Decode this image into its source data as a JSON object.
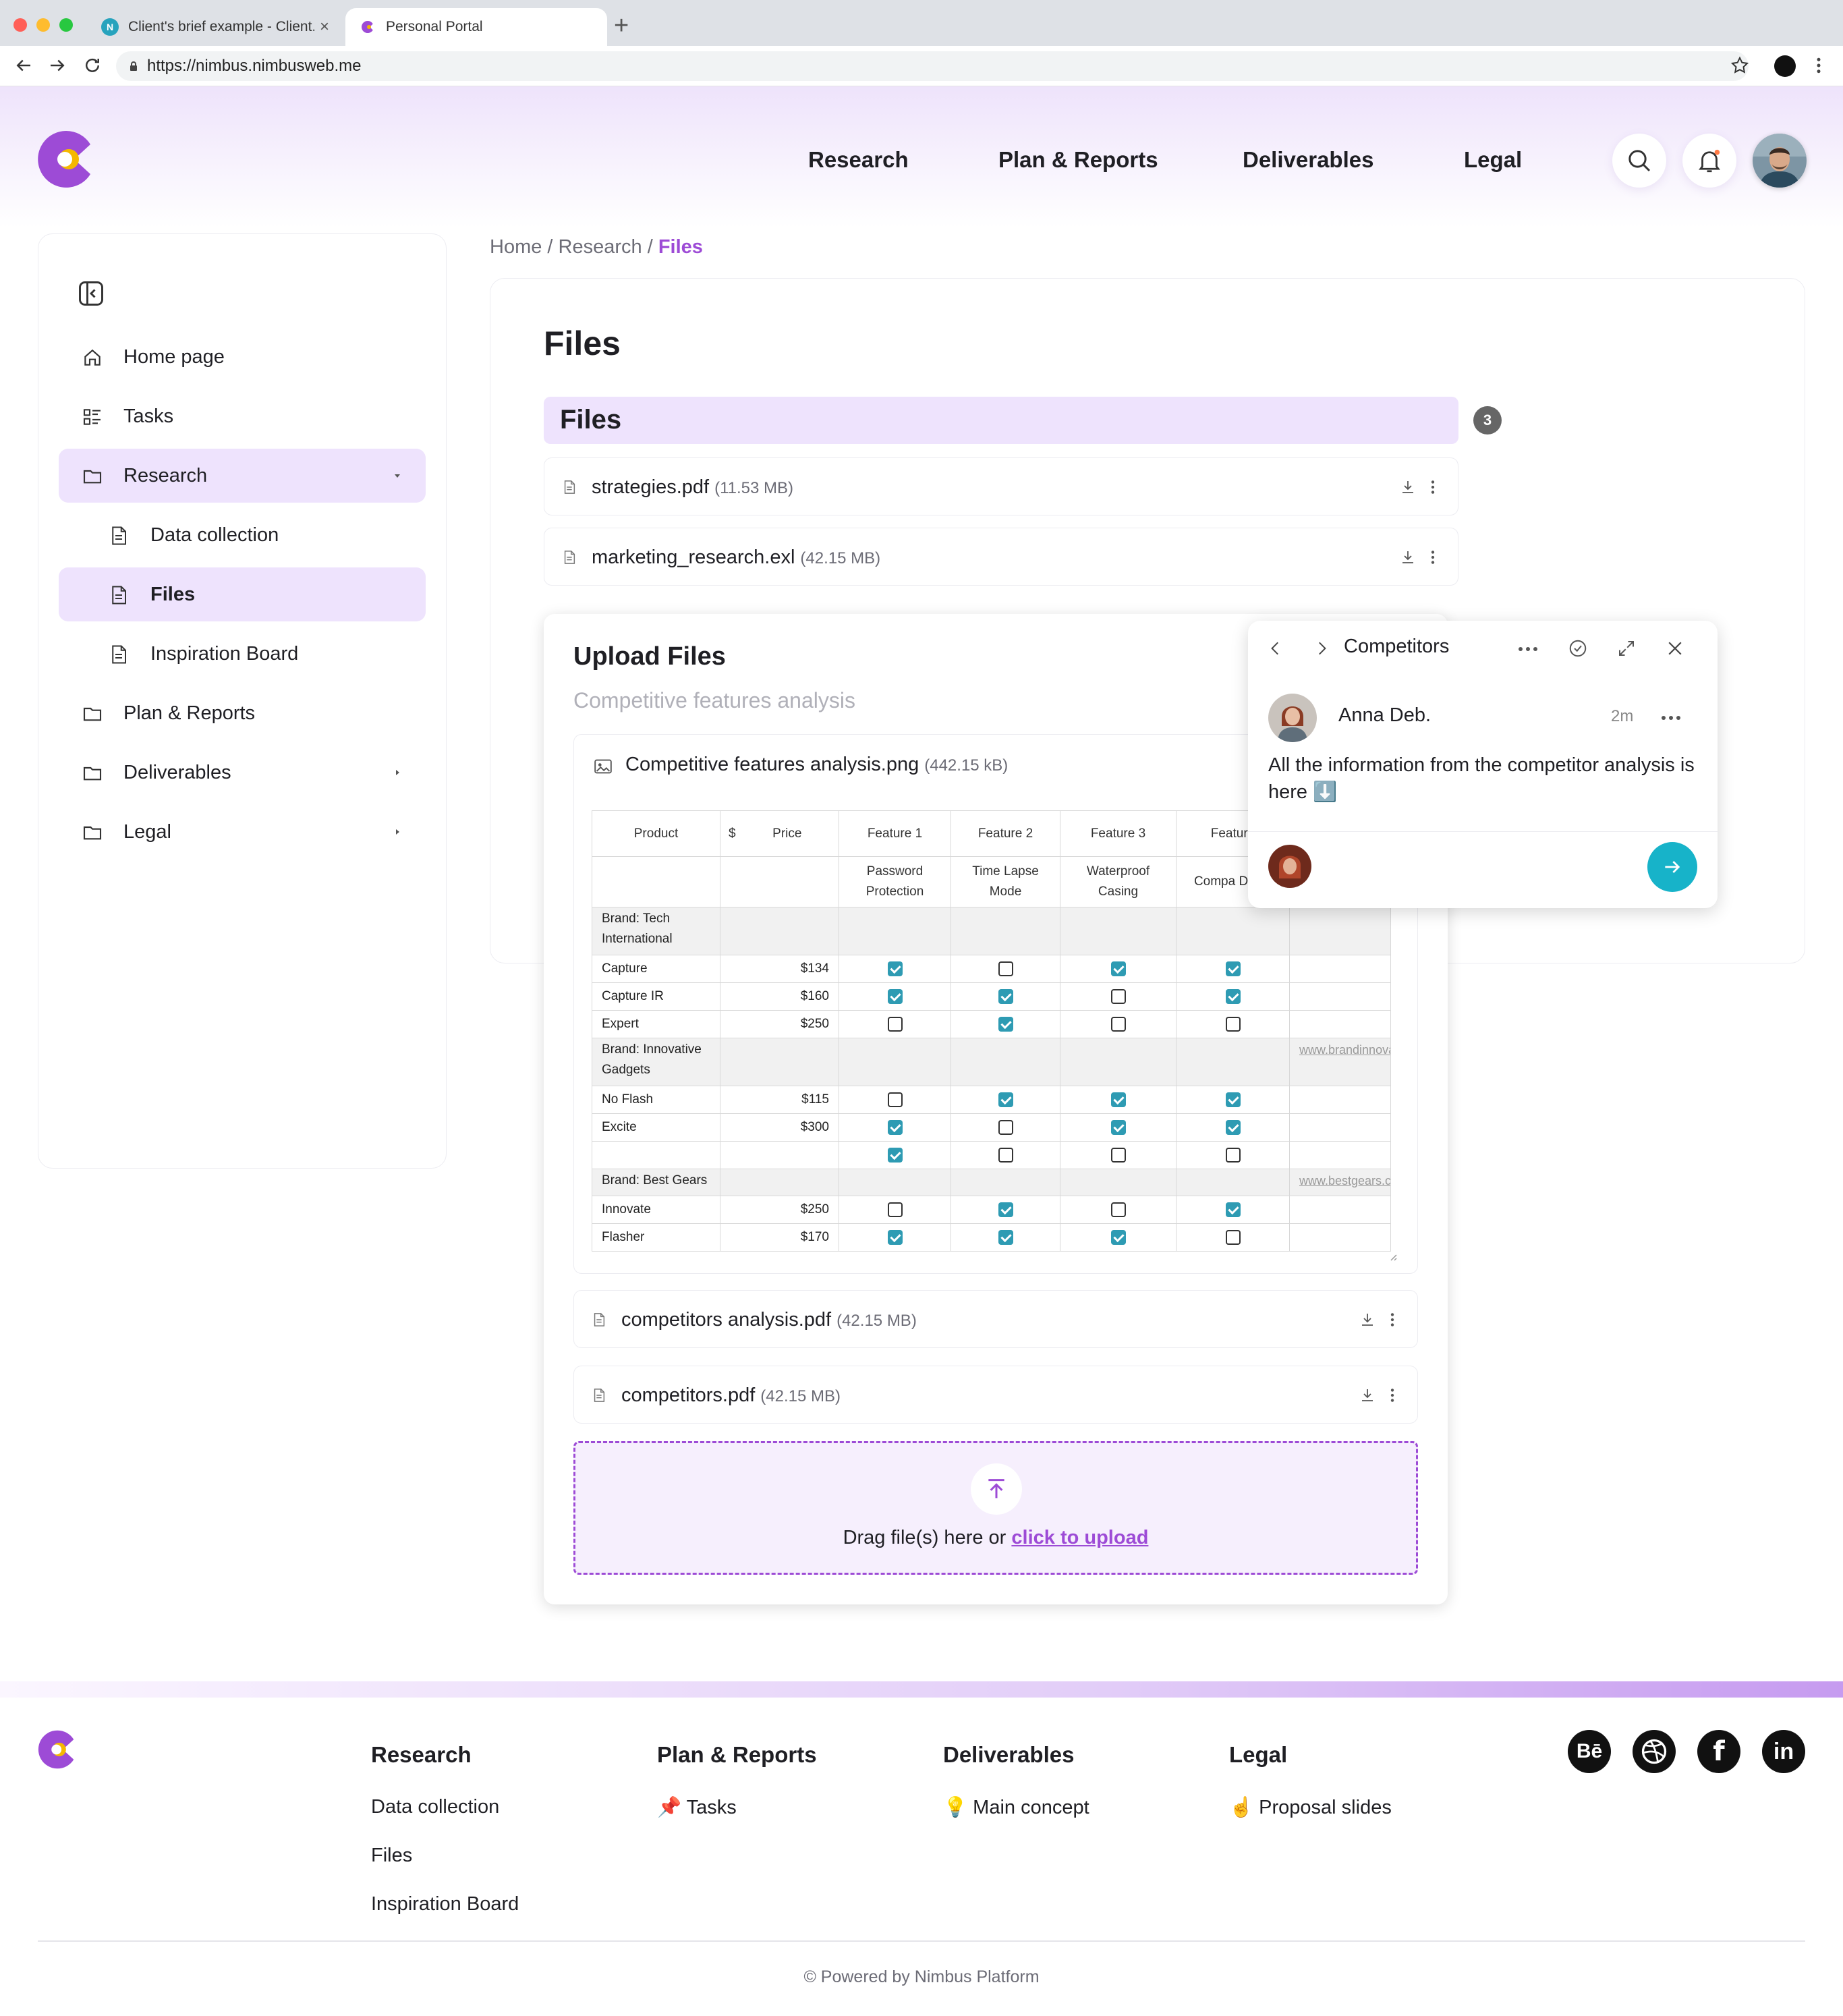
{
  "browser": {
    "tabs": [
      {
        "title": "Client's brief example - Client...",
        "close": "×"
      },
      {
        "title": "Personal Portal"
      }
    ],
    "new_tab": "+",
    "url": "https://nimbus.nimbusweb.me"
  },
  "header": {
    "nav": [
      "Research",
      "Plan & Reports",
      "Deliverables",
      "Legal"
    ],
    "brand_color": "#9d4bd6",
    "accent_color": "#f5b800"
  },
  "sidebar": {
    "items": [
      {
        "label": "Home page",
        "icon": "home-icon"
      },
      {
        "label": "Tasks",
        "icon": "tasks-icon"
      },
      {
        "label": "Research",
        "icon": "folder-icon",
        "expanded": true
      },
      {
        "label": "Data collection",
        "icon": "document-icon"
      },
      {
        "label": "Files",
        "icon": "document-icon",
        "selected": true
      },
      {
        "label": "Inspiration Board",
        "icon": "document-icon"
      },
      {
        "label": "Plan & Reports",
        "icon": "folder-icon"
      },
      {
        "label": "Deliverables",
        "icon": "folder-icon"
      },
      {
        "label": "Legal",
        "icon": "folder-icon"
      }
    ]
  },
  "breadcrumb": {
    "home": "Home",
    "sep": " / ",
    "parent": "Research",
    "current": "Files"
  },
  "main": {
    "title": "Files",
    "section_label": "Files",
    "count": "3",
    "files": [
      {
        "name": "strategies.pdf",
        "size": "(11.53 MB)"
      },
      {
        "name": "marketing_research.exl",
        "size": "(42.15 MB)"
      }
    ]
  },
  "upload": {
    "title": "Upload Files",
    "subtitle": "Competitive features analysis",
    "image": {
      "name": "Competitive features analysis.png",
      "size": "(442.15 kB)"
    },
    "files": [
      {
        "name": "competitors analysis.pdf",
        "size": "(42.15 MB)"
      },
      {
        "name": "competitors.pdf",
        "size": "(42.15 MB)"
      }
    ],
    "drop_text": "Drag file(s) here or ",
    "drop_link": "click to upload"
  },
  "sheet": {
    "headers": [
      "Product",
      "$",
      "Price",
      "Feature 1",
      "Feature 2",
      "Feature 3",
      "Feature"
    ],
    "subheaders": [
      "Password Protection",
      "Time Lapse Mode",
      "Waterproof Casing",
      "Compa Desig"
    ],
    "rows": [
      {
        "brand": "Brand: Tech International"
      },
      {
        "product": "Capture",
        "price": "$134",
        "f": [
          true,
          false,
          true,
          true
        ]
      },
      {
        "product": "Capture IR",
        "price": "$160",
        "f": [
          true,
          true,
          false,
          true
        ]
      },
      {
        "product": "Expert",
        "price": "$250",
        "f": [
          false,
          true,
          false,
          false
        ]
      },
      {
        "brand": "Brand: Innovative Gadgets",
        "link": "www.brandinnovative.com"
      },
      {
        "product": "No Flash",
        "price": "$115",
        "f": [
          false,
          true,
          true,
          true
        ]
      },
      {
        "product": "Excite",
        "price": "$300",
        "f": [
          true,
          false,
          true,
          true
        ]
      },
      {
        "product": "",
        "price": "",
        "f": [
          true,
          false,
          false,
          false
        ]
      },
      {
        "brand": "Brand: Best Gears",
        "link": "www.bestgears.com"
      },
      {
        "product": "Innovate",
        "price": "$250",
        "f": [
          false,
          true,
          false,
          true
        ]
      },
      {
        "product": "Flasher",
        "price": "$170",
        "f": [
          true,
          true,
          true,
          false
        ]
      }
    ]
  },
  "comment": {
    "thread_title": "Competitors",
    "author": "Anna Deb.",
    "time": "2m",
    "body": "All the information from the competitor analysis is here ⬇️"
  },
  "footer": {
    "columns": [
      {
        "title": "Research",
        "links": [
          "Data collection",
          "Files",
          "Inspiration Board"
        ]
      },
      {
        "title": "Plan & Reports",
        "links": [
          "📌 Tasks"
        ]
      },
      {
        "title": "Deliverables",
        "links": [
          "💡 Main concept"
        ]
      },
      {
        "title": "Legal",
        "links": [
          "☝️ Proposal slides"
        ]
      }
    ],
    "social": [
      "Bē",
      "dribbble-icon",
      "f",
      "in"
    ],
    "powered": "© Powered by Nimbus Platform"
  }
}
